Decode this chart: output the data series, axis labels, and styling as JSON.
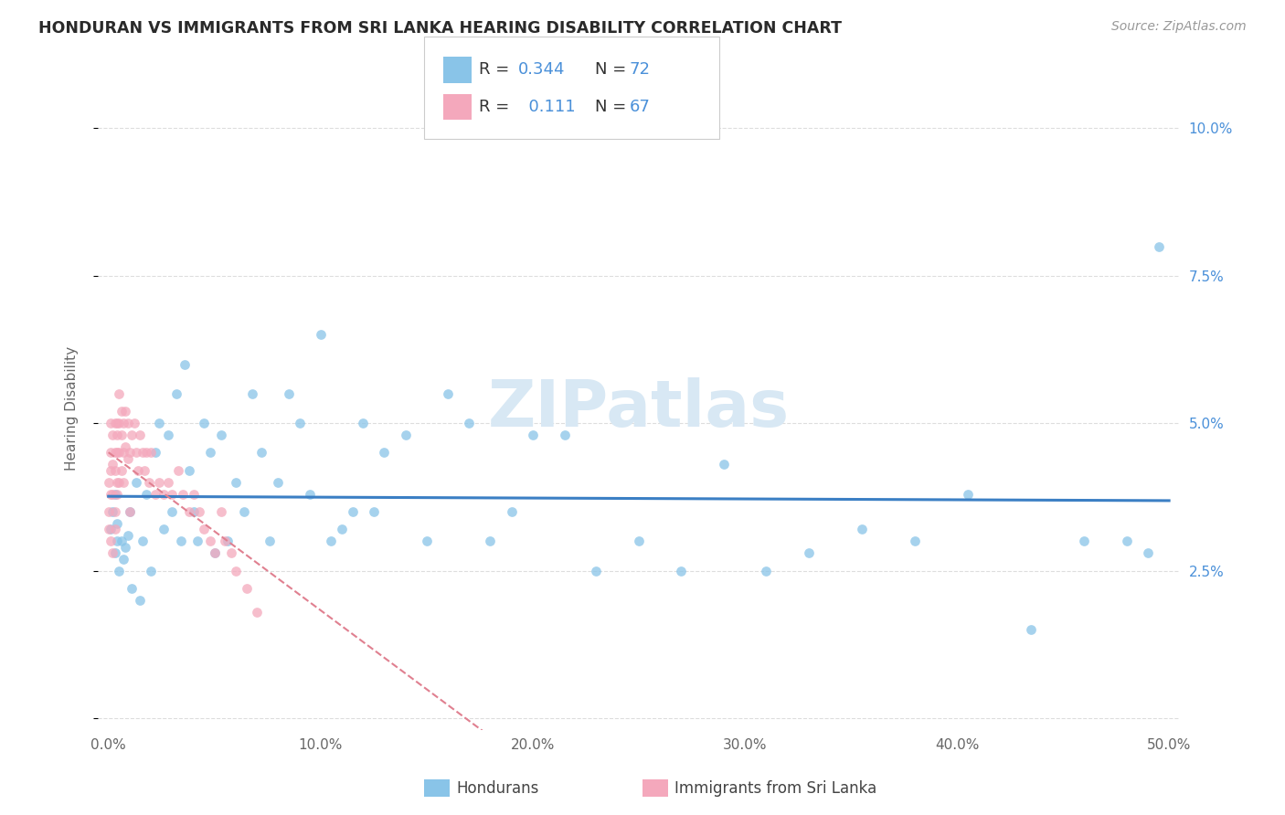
{
  "title": "HONDURAN VS IMMIGRANTS FROM SRI LANKA HEARING DISABILITY CORRELATION CHART",
  "source_text": "Source: ZipAtlas.com",
  "ylabel": "Hearing Disability",
  "xlim": [
    -0.005,
    0.505
  ],
  "ylim": [
    -0.002,
    0.107
  ],
  "xticks": [
    0.0,
    0.1,
    0.2,
    0.3,
    0.4,
    0.5
  ],
  "xticklabels": [
    "0.0%",
    "10.0%",
    "20.0%",
    "30.0%",
    "40.0%",
    "50.0%"
  ],
  "yticks": [
    0.0,
    0.025,
    0.05,
    0.075,
    0.1
  ],
  "yticklabels": [
    "",
    "2.5%",
    "5.0%",
    "7.5%",
    "10.0%"
  ],
  "legend_R1": "0.344",
  "legend_N1": "72",
  "legend_R2": "0.111",
  "legend_N2": "67",
  "label1": "Hondurans",
  "label2": "Immigrants from Sri Lanka",
  "color1": "#89C4E8",
  "color2": "#F4A8BC",
  "line_color1": "#3B7FC4",
  "line_color2": "#E08090",
  "title_color": "#2a2a2a",
  "title_fontsize": 12.5,
  "hondurans_x": [
    0.001,
    0.002,
    0.003,
    0.003,
    0.004,
    0.004,
    0.005,
    0.006,
    0.007,
    0.008,
    0.009,
    0.01,
    0.011,
    0.013,
    0.015,
    0.016,
    0.018,
    0.02,
    0.022,
    0.024,
    0.026,
    0.028,
    0.03,
    0.032,
    0.034,
    0.036,
    0.038,
    0.04,
    0.042,
    0.045,
    0.048,
    0.05,
    0.053,
    0.056,
    0.06,
    0.064,
    0.068,
    0.072,
    0.076,
    0.08,
    0.085,
    0.09,
    0.095,
    0.1,
    0.105,
    0.11,
    0.115,
    0.12,
    0.125,
    0.13,
    0.14,
    0.15,
    0.16,
    0.17,
    0.18,
    0.19,
    0.2,
    0.215,
    0.23,
    0.25,
    0.27,
    0.29,
    0.31,
    0.33,
    0.355,
    0.38,
    0.405,
    0.435,
    0.46,
    0.48,
    0.49,
    0.495
  ],
  "hondurans_y": [
    0.032,
    0.035,
    0.028,
    0.038,
    0.03,
    0.033,
    0.025,
    0.03,
    0.027,
    0.029,
    0.031,
    0.035,
    0.022,
    0.04,
    0.02,
    0.03,
    0.038,
    0.025,
    0.045,
    0.05,
    0.032,
    0.048,
    0.035,
    0.055,
    0.03,
    0.06,
    0.042,
    0.035,
    0.03,
    0.05,
    0.045,
    0.028,
    0.048,
    0.03,
    0.04,
    0.035,
    0.055,
    0.045,
    0.03,
    0.04,
    0.055,
    0.05,
    0.038,
    0.065,
    0.03,
    0.032,
    0.035,
    0.05,
    0.035,
    0.045,
    0.048,
    0.03,
    0.055,
    0.05,
    0.03,
    0.035,
    0.048,
    0.048,
    0.025,
    0.03,
    0.025,
    0.043,
    0.025,
    0.028,
    0.032,
    0.03,
    0.038,
    0.015,
    0.03,
    0.03,
    0.028,
    0.08
  ],
  "srilanka_x": [
    0.0,
    0.0,
    0.0,
    0.001,
    0.001,
    0.001,
    0.001,
    0.001,
    0.002,
    0.002,
    0.002,
    0.002,
    0.003,
    0.003,
    0.003,
    0.003,
    0.003,
    0.004,
    0.004,
    0.004,
    0.004,
    0.004,
    0.005,
    0.005,
    0.005,
    0.005,
    0.006,
    0.006,
    0.006,
    0.007,
    0.007,
    0.007,
    0.008,
    0.008,
    0.009,
    0.009,
    0.01,
    0.01,
    0.011,
    0.012,
    0.013,
    0.014,
    0.015,
    0.016,
    0.017,
    0.018,
    0.019,
    0.02,
    0.022,
    0.024,
    0.026,
    0.028,
    0.03,
    0.033,
    0.035,
    0.038,
    0.04,
    0.043,
    0.045,
    0.048,
    0.05,
    0.053,
    0.055,
    0.058,
    0.06,
    0.065,
    0.07
  ],
  "srilanka_y": [
    0.035,
    0.04,
    0.032,
    0.045,
    0.042,
    0.038,
    0.05,
    0.03,
    0.048,
    0.043,
    0.038,
    0.028,
    0.05,
    0.045,
    0.042,
    0.035,
    0.032,
    0.05,
    0.048,
    0.045,
    0.04,
    0.038,
    0.055,
    0.05,
    0.045,
    0.04,
    0.052,
    0.048,
    0.042,
    0.05,
    0.045,
    0.04,
    0.052,
    0.046,
    0.05,
    0.044,
    0.045,
    0.035,
    0.048,
    0.05,
    0.045,
    0.042,
    0.048,
    0.045,
    0.042,
    0.045,
    0.04,
    0.045,
    0.038,
    0.04,
    0.038,
    0.04,
    0.038,
    0.042,
    0.038,
    0.035,
    0.038,
    0.035,
    0.032,
    0.03,
    0.028,
    0.035,
    0.03,
    0.028,
    0.025,
    0.022,
    0.018
  ]
}
